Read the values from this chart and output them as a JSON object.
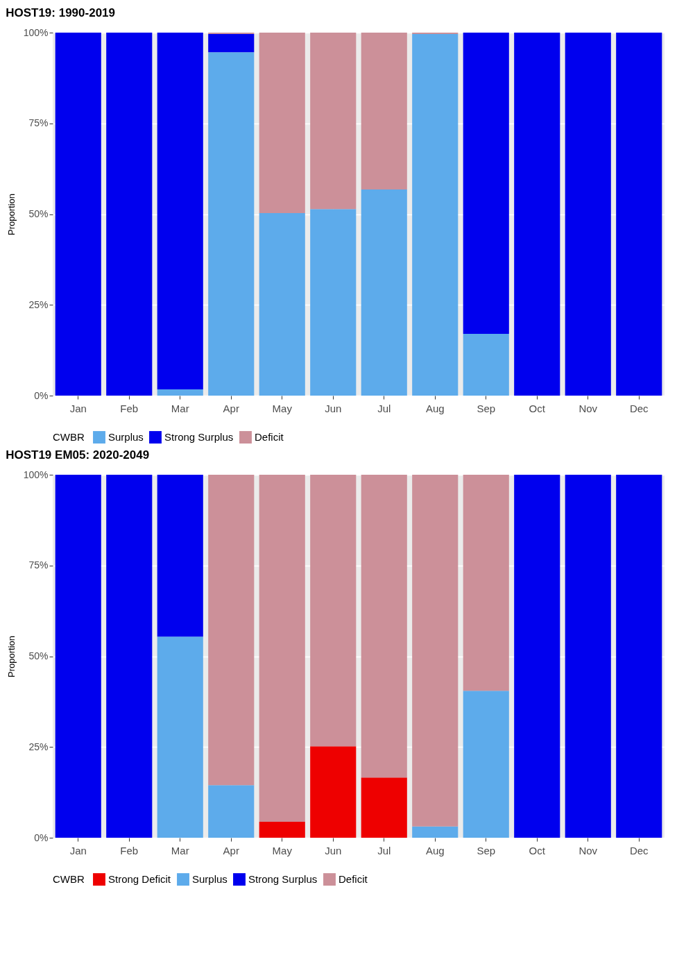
{
  "chart_data": [
    {
      "type": "bar",
      "title": "HOST19: 1990-2019",
      "ylabel": "Proportion",
      "legend_title": "CWBR",
      "stacked": true,
      "legend": "bottom",
      "grid": true,
      "categories": [
        "Jan",
        "Feb",
        "Mar",
        "Apr",
        "May",
        "Jun",
        "Jul",
        "Aug",
        "Sep",
        "Oct",
        "Nov",
        "Dec"
      ],
      "ylim": [
        0,
        100
      ],
      "yticks": [
        {
          "value": 0,
          "label": "0%"
        },
        {
          "value": 25,
          "label": "25%"
        },
        {
          "value": 50,
          "label": "50%"
        },
        {
          "value": 75,
          "label": "75%"
        },
        {
          "value": 100,
          "label": "100%"
        }
      ],
      "series": [
        {
          "name": "Surplus",
          "color": "#5dabeb",
          "values": [
            0,
            0,
            1.7,
            94.6,
            50.3,
            51.4,
            56.8,
            99.6,
            17.0,
            0,
            0,
            0
          ]
        },
        {
          "name": "Strong Surplus",
          "color": "#0000ee",
          "values": [
            100,
            100,
            98.3,
            5.0,
            0,
            0,
            0,
            0,
            83.0,
            100,
            100,
            100
          ]
        },
        {
          "name": "Deficit",
          "color": "#cc9099",
          "values": [
            0,
            0,
            0,
            0.4,
            49.7,
            48.6,
            43.2,
            0.4,
            0,
            0,
            0,
            0
          ]
        }
      ]
    },
    {
      "type": "bar",
      "title": "HOST19 EM05: 2020-2049",
      "ylabel": "Proportion",
      "legend_title": "CWBR",
      "stacked": true,
      "legend": "bottom",
      "grid": true,
      "categories": [
        "Jan",
        "Feb",
        "Mar",
        "Apr",
        "May",
        "Jun",
        "Jul",
        "Aug",
        "Sep",
        "Oct",
        "Nov",
        "Dec"
      ],
      "ylim": [
        0,
        100
      ],
      "yticks": [
        {
          "value": 0,
          "label": "0%"
        },
        {
          "value": 25,
          "label": "25%"
        },
        {
          "value": 50,
          "label": "50%"
        },
        {
          "value": 75,
          "label": "75%"
        },
        {
          "value": 100,
          "label": "100%"
        }
      ],
      "series": [
        {
          "name": "Strong Deficit",
          "color": "#ee0000",
          "values": [
            0,
            0,
            0,
            0,
            4.4,
            25.2,
            16.6,
            0,
            0,
            0,
            0,
            0
          ]
        },
        {
          "name": "Surplus",
          "color": "#5dabeb",
          "values": [
            0,
            0,
            55.4,
            14.5,
            0,
            0,
            0,
            3.1,
            40.5,
            0,
            0,
            0
          ]
        },
        {
          "name": "Strong Surplus",
          "color": "#0000ee",
          "values": [
            100,
            100,
            44.6,
            0,
            0,
            0,
            0,
            0,
            0,
            100,
            100,
            100
          ]
        },
        {
          "name": "Deficit",
          "color": "#cc9099",
          "values": [
            0,
            0,
            0,
            85.5,
            95.6,
            74.8,
            83.4,
            96.9,
            59.5,
            0,
            0,
            0
          ]
        }
      ]
    }
  ]
}
